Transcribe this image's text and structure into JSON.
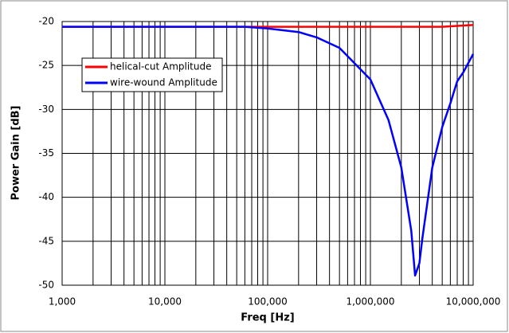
{
  "chart_data": {
    "type": "line",
    "x_label": "Freq [Hz]",
    "y_label": "Power Gain [dB]",
    "xscale": "log",
    "xlim": [
      1000,
      10000000
    ],
    "ylim": [
      -50,
      -20
    ],
    "xticks": [
      {
        "value": 1000,
        "label": "1,000"
      },
      {
        "value": 10000,
        "label": "10,000"
      },
      {
        "value": 100000,
        "label": "100,000"
      },
      {
        "value": 1000000,
        "label": "1,000,000"
      },
      {
        "value": 10000000,
        "label": "10,000,000"
      }
    ],
    "yticks": [
      -20,
      -25,
      -30,
      -35,
      -40,
      -45,
      -50
    ],
    "grid": true,
    "legend_position": "upper left",
    "series": [
      {
        "name": "helical-cut Amplitude",
        "color": "#ff0000",
        "x": [
          1000,
          10000,
          100000,
          1000000,
          5000000,
          7000000,
          10000000
        ],
        "values": [
          -20.6,
          -20.6,
          -20.6,
          -20.6,
          -20.6,
          -20.5,
          -20.4
        ]
      },
      {
        "name": "wire-wound Amplitude",
        "color": "#0000ff",
        "x": [
          1000,
          10000,
          60000,
          100000,
          200000,
          300000,
          500000,
          1000000,
          1500000,
          2000000,
          2500000,
          2720000,
          3000000,
          3200000,
          4000000,
          5000000,
          6000000,
          7000000,
          8000000,
          10000000
        ],
        "values": [
          -20.6,
          -20.6,
          -20.6,
          -20.8,
          -21.2,
          -21.8,
          -23.0,
          -26.6,
          -31.2,
          -36.6,
          -43.8,
          -48.9,
          -47.5,
          -44.7,
          -36.6,
          -32.0,
          -29.3,
          -26.8,
          -25.8,
          -23.7
        ]
      }
    ]
  }
}
